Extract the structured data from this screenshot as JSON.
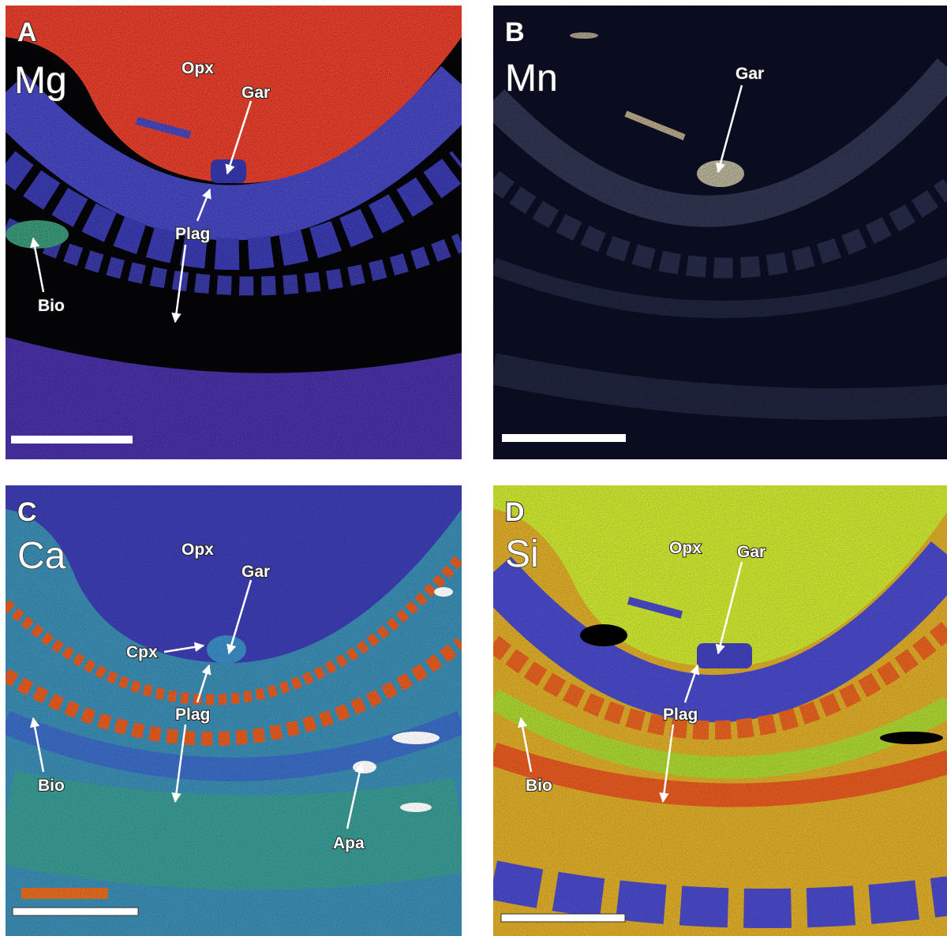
{
  "panels": [
    {
      "letter": "A",
      "element": "Mg",
      "labels": [
        "Opx",
        "Gar",
        "Plag",
        "Bio"
      ]
    },
    {
      "letter": "B",
      "element": "Mn",
      "labels": [
        "Gar"
      ]
    },
    {
      "letter": "C",
      "element": "Ca",
      "labels": [
        "Opx",
        "Gar",
        "Cpx",
        "Plag",
        "Bio",
        "Apa"
      ]
    },
    {
      "letter": "D",
      "element": "Si",
      "labels": [
        "Opx",
        "Gar",
        "Plag",
        "Bio"
      ]
    }
  ]
}
